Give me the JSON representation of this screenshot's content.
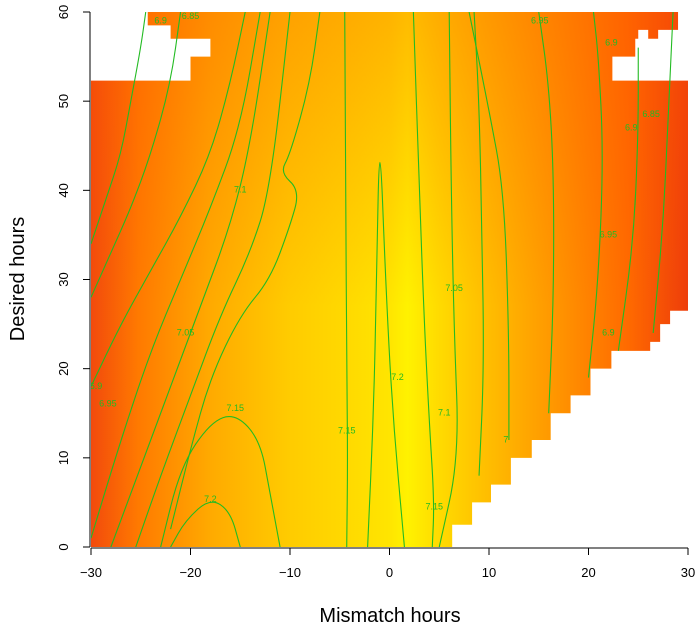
{
  "chart_data": {
    "type": "heatmap",
    "title": "",
    "xlabel": "Mismatch hours",
    "ylabel": "Desired hours",
    "xlim": [
      -30,
      30
    ],
    "ylim": [
      0,
      60
    ],
    "x_ticks": [
      -30,
      -20,
      -10,
      0,
      10,
      20,
      30
    ],
    "y_ticks": [
      0,
      10,
      20,
      30,
      40,
      50,
      60
    ],
    "x_tick_labels": [
      "−30",
      "−20",
      "−10",
      "0",
      "10",
      "20",
      "30"
    ],
    "y_tick_labels": [
      "0",
      "10",
      "20",
      "30",
      "40",
      "50",
      "60"
    ],
    "colormap": [
      "#e8360b",
      "#ff6a00",
      "#ffa500",
      "#ffc800",
      "#fff000"
    ],
    "contour_color": "#22bb22",
    "missing_regions": [
      {
        "description": "upper-left white",
        "x_range": [
          -30,
          -18
        ],
        "y_range": [
          52,
          60
        ]
      },
      {
        "description": "upper-right white",
        "x_range": [
          22,
          30
        ],
        "y_range": [
          52,
          60
        ]
      },
      {
        "description": "lower-right white triangle",
        "x_from": 4,
        "y_from": 0,
        "to_x": 30,
        "to_y": 27
      }
    ],
    "contour_labels": [
      {
        "text": "7.2",
        "x": -18,
        "y": 5.3
      },
      {
        "text": "7.15",
        "x": -15.5,
        "y": 15.5
      },
      {
        "text": "7.15",
        "x": -4.3,
        "y": 13
      },
      {
        "text": "7.2",
        "x": 0.8,
        "y": 19
      },
      {
        "text": "7.15",
        "x": 4.5,
        "y": 4.5
      },
      {
        "text": "7.1",
        "x": 5.5,
        "y": 15
      },
      {
        "text": "7.05",
        "x": -20.5,
        "y": 24
      },
      {
        "text": "7.1",
        "x": -15,
        "y": 40
      },
      {
        "text": "7.05",
        "x": 6.5,
        "y": 29
      },
      {
        "text": "7",
        "x": 11.7,
        "y": 12
      },
      {
        "text": "6.95",
        "x": -28.3,
        "y": 16
      },
      {
        "text": "6.9",
        "x": -29.5,
        "y": 18
      },
      {
        "text": "6.95",
        "x": 22,
        "y": 35
      },
      {
        "text": "6.9",
        "x": 22,
        "y": 24
      },
      {
        "text": "6.9",
        "x": 24.3,
        "y": 47
      },
      {
        "text": "6.85",
        "x": 26.3,
        "y": 48.5
      },
      {
        "text": "6.95",
        "x": 15.1,
        "y": 59
      },
      {
        "text": "6.9",
        "x": 22.3,
        "y": 56.5
      },
      {
        "text": "6.9",
        "x": -23,
        "y": 59
      },
      {
        "text": "6.85",
        "x": -20,
        "y": 59.5
      }
    ]
  }
}
